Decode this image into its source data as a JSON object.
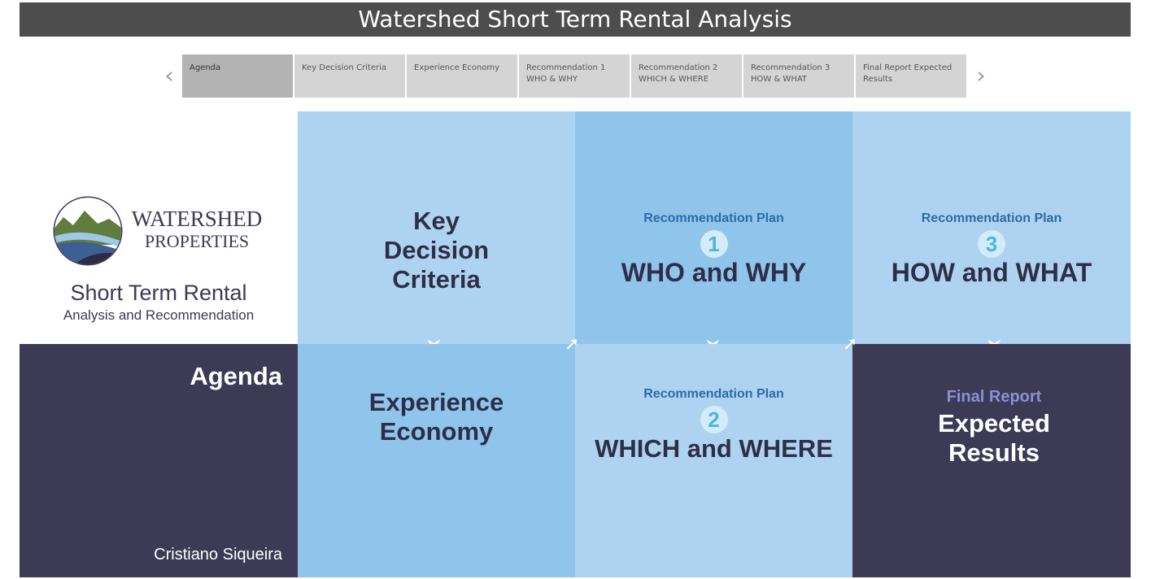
{
  "header": {
    "title": "Watershed Short Term Rental Analysis"
  },
  "nav": {
    "prev_icon": "chevron-left-icon",
    "next_icon": "chevron-right-icon",
    "tabs": [
      {
        "label": "Agenda"
      },
      {
        "label": "Key Decision Criteria"
      },
      {
        "label": "Experience Economy"
      },
      {
        "label": "Recommendation 1 WHO & WHY"
      },
      {
        "label": "Recommendation 2 WHICH & WHERE"
      },
      {
        "label": "Recommendation 3 HOW & WHAT"
      },
      {
        "label": "Final Report Expected Results"
      }
    ],
    "active_tab": "Agenda"
  },
  "logo": {
    "line1": "WATERSHED",
    "line2": "PROPERTIES",
    "subtitle": "Short Term Rental",
    "tagline": "Analysis and Recommendation"
  },
  "tiles": {
    "key_decision": {
      "line1": "Key",
      "line2": "Decision",
      "line3": "Criteria"
    },
    "rec1": {
      "label": "Recommendation Plan",
      "number": "1",
      "heading": "WHO and WHY"
    },
    "rec3": {
      "label": "Recommendation Plan",
      "number": "3",
      "heading": "HOW and WHAT"
    },
    "agenda": {
      "title": "Agenda",
      "author": "Cristiano Siqueira"
    },
    "experience": {
      "line1": "Experience",
      "line2": "Economy"
    },
    "rec2": {
      "label": "Recommendation Plan",
      "number": "2",
      "heading": "WHICH and WHERE"
    },
    "final": {
      "label": "Final Report",
      "line1": "Expected",
      "line2": "Results"
    }
  },
  "colors": {
    "title_bar": "#4d4d4d",
    "tile_light_blue": "#aed3f0",
    "tile_mid_blue": "#8fc5ea",
    "tile_dark": "#3d3a55",
    "tab_active": "#b3b3b3",
    "tab_inactive": "#d4d4d4"
  }
}
